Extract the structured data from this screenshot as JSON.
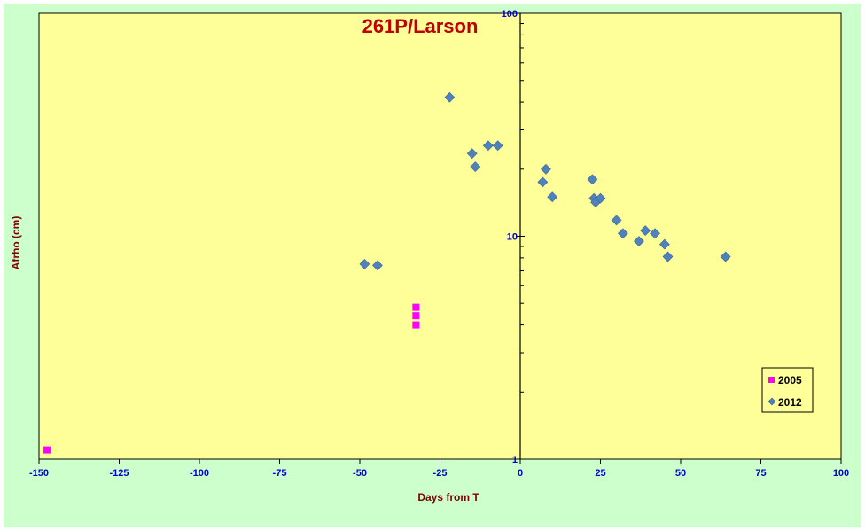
{
  "chart_data": {
    "type": "scatter",
    "title": "261P/Larson",
    "xlabel": "Days from  T",
    "ylabel": "Afrho (cm)",
    "xlim": [
      -150,
      100
    ],
    "ylim": [
      1,
      100
    ],
    "y_scale": "log",
    "x_ticks": [
      -150,
      -125,
      -100,
      -75,
      -50,
      -25,
      0,
      25,
      50,
      75,
      100
    ],
    "y_tick_labels": [
      "1",
      "10",
      "100"
    ],
    "grid": false,
    "legend_position": "bottom-right",
    "series": [
      {
        "name": "2005",
        "color": "#ff00ff",
        "marker": "square",
        "points": [
          {
            "x": -147.5,
            "y": 1.1
          },
          {
            "x": -32.5,
            "y": 4.8
          },
          {
            "x": -32.5,
            "y": 4.4
          },
          {
            "x": -32.5,
            "y": 4.0
          }
        ]
      },
      {
        "name": "2012",
        "color": "#4f81bd",
        "marker": "diamond",
        "points": [
          {
            "x": -48.5,
            "y": 7.5
          },
          {
            "x": -44.5,
            "y": 7.4
          },
          {
            "x": -22,
            "y": 42
          },
          {
            "x": -15,
            "y": 23.5
          },
          {
            "x": -14,
            "y": 20.5
          },
          {
            "x": -10,
            "y": 25.5
          },
          {
            "x": -7,
            "y": 25.5
          },
          {
            "x": 7,
            "y": 17.5
          },
          {
            "x": 8,
            "y": 20
          },
          {
            "x": 10,
            "y": 15
          },
          {
            "x": 22.5,
            "y": 18
          },
          {
            "x": 23,
            "y": 14.8
          },
          {
            "x": 23.5,
            "y": 14.2
          },
          {
            "x": 25,
            "y": 14.8
          },
          {
            "x": 30,
            "y": 11.8
          },
          {
            "x": 32,
            "y": 10.3
          },
          {
            "x": 37,
            "y": 9.5
          },
          {
            "x": 39,
            "y": 10.6
          },
          {
            "x": 42,
            "y": 10.3
          },
          {
            "x": 45,
            "y": 9.2
          },
          {
            "x": 46,
            "y": 8.1
          },
          {
            "x": 64,
            "y": 8.1
          }
        ]
      }
    ]
  }
}
